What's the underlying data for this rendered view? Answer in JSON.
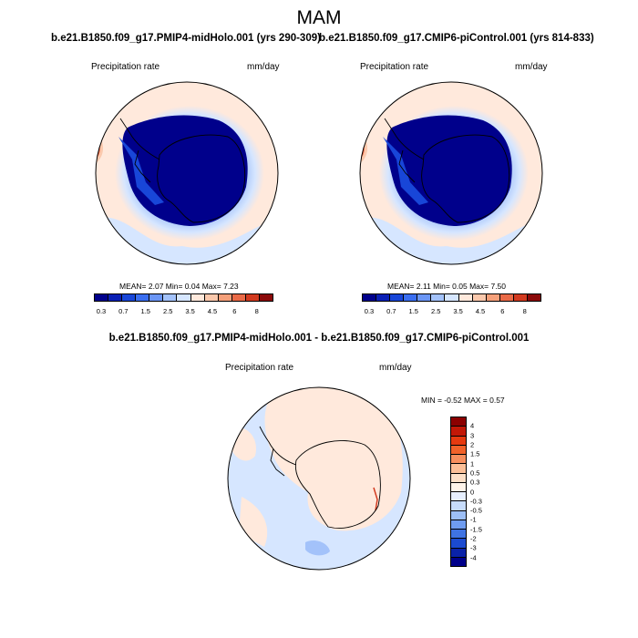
{
  "season": "MAM",
  "panel_left": {
    "title": "b.e21.B1850.f09_g17.PMIP4-midHolo.001 (yrs 290-309)",
    "variable": "Precipitation rate",
    "units": "mm/day",
    "stats": "MEAN=  2.07  Min=  0.04  Max=  7.23"
  },
  "panel_right": {
    "title": "b.e21.B1850.f09_g17.CMIP6-piControl.001 (yrs 814-833)",
    "variable": "Precipitation rate",
    "units": "mm/day",
    "stats": "MEAN=  2.11  Min=  0.05  Max=  7.50"
  },
  "panel_diff": {
    "title": "b.e21.B1850.f09_g17.PMIP4-midHolo.001 - b.e21.B1850.f09_g17.CMIP6-piControl.001",
    "variable": "Precipitation rate",
    "units": "mm/day",
    "stats": "MIN =  -0.52 MAX =   0.57"
  },
  "abs_colorbar": {
    "colors": [
      "#00008b",
      "#0a1fb5",
      "#1846d8",
      "#3a6ef0",
      "#6b96f5",
      "#a3c2fa",
      "#d6e6ff",
      "#ffe9dc",
      "#fbc9ad",
      "#f5a07a",
      "#ea6a47",
      "#d23a1f",
      "#8b0a0a"
    ],
    "labels": [
      "0.3",
      "0.7",
      "1.5",
      "2.5",
      "3.5",
      "4.5",
      "6",
      "8"
    ]
  },
  "diff_colorbar": {
    "colors": [
      "#8b0000",
      "#c21807",
      "#e63a10",
      "#f2622a",
      "#f78f5e",
      "#fbbf98",
      "#fde0c8",
      "#fff4ea",
      "#e6efff",
      "#c7dcfb",
      "#9dbff6",
      "#6f9cf0",
      "#3f73e3",
      "#1b4ad0",
      "#0a22a8",
      "#00008b"
    ],
    "labels": [
      "4",
      "3",
      "2",
      "1.5",
      "1",
      "0.5",
      "0.3",
      "0",
      "-0.3",
      "-0.5",
      "-1",
      "-1.5",
      "-2",
      "-3",
      "-4"
    ]
  }
}
